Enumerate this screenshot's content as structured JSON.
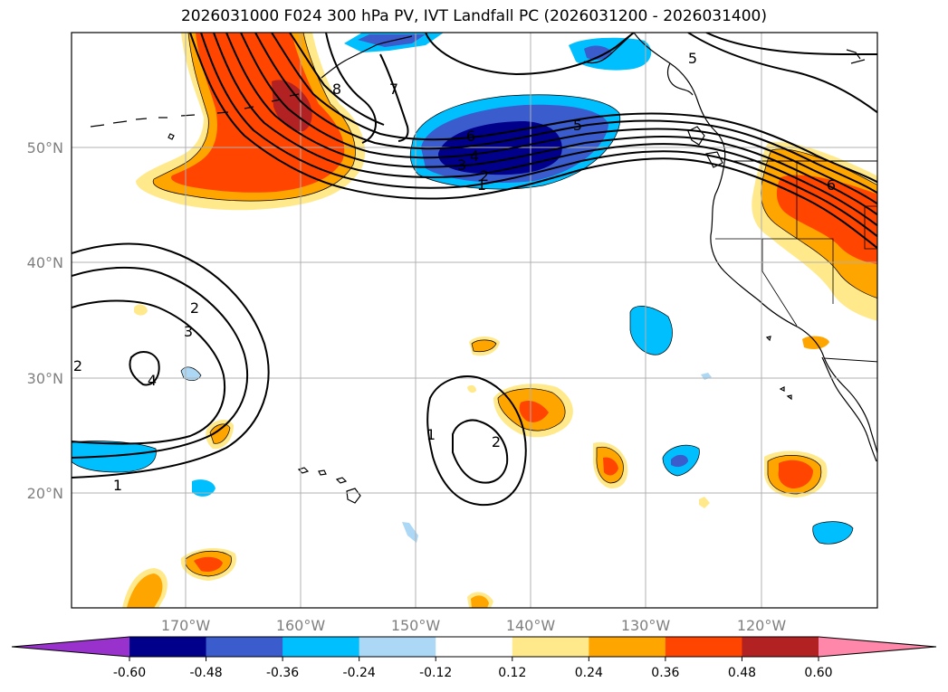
{
  "title": "2026031000 F024 300 hPa PV, IVT Landfall PC (2026031200 - 2026031400)",
  "map": {
    "lat_labels": [
      "50°N",
      "40°N",
      "30°N",
      "20°N"
    ],
    "lon_labels": [
      "170°W",
      "160°W",
      "150°W",
      "140°W",
      "130°W",
      "120°W"
    ],
    "contour_labels": [
      "8",
      "7",
      "6",
      "5",
      "4",
      "3",
      "2",
      "1",
      "5",
      "6",
      "2",
      "3",
      "4",
      "2",
      "1",
      "1",
      "2"
    ]
  },
  "colorbar": {
    "levels": [
      "-0.60",
      "-0.48",
      "-0.36",
      "-0.24",
      "-0.12",
      "0.12",
      "0.24",
      "0.36",
      "0.48",
      "0.60"
    ],
    "colors": [
      "#9932cc",
      "#00008b",
      "#3a5ccc",
      "#00bfff",
      "#add8f5",
      "#ffffff",
      "#ffe98a",
      "#ffa500",
      "#ff4500",
      "#b22222",
      "#ff88aa"
    ]
  }
}
